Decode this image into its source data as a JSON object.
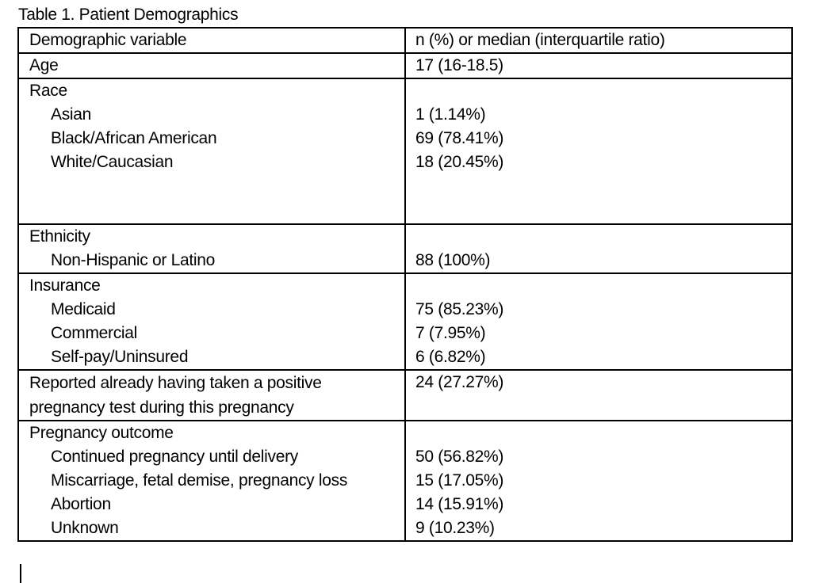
{
  "caption": "Table 1. Patient Demographics",
  "header": {
    "col1": "Demographic variable",
    "col2": "n (%) or median (interquartile ratio)"
  },
  "age": {
    "label": "Age",
    "value": "17 (16-18.5)"
  },
  "race": {
    "label": "Race",
    "items": [
      {
        "label": "Asian",
        "value": "1 (1.14%)"
      },
      {
        "label": "Black/African American",
        "value": "69 (78.41%)"
      },
      {
        "label": "White/Caucasian",
        "value": "18 (20.45%)"
      }
    ]
  },
  "ethnicity": {
    "label": "Ethnicity",
    "items": [
      {
        "label": "Non-Hispanic or Latino",
        "value": "88 (100%)"
      }
    ]
  },
  "insurance": {
    "label": "Insurance",
    "items": [
      {
        "label": "Medicaid",
        "value": "75 (85.23%)"
      },
      {
        "label": "Commercial",
        "value": "7 (7.95%)"
      },
      {
        "label": "Self-pay/Uninsured",
        "value": "6 (6.82%)"
      }
    ]
  },
  "pregnancy_test": {
    "label": "Reported already having taken a positive pregnancy test during this pregnancy",
    "value": "24 (27.27%)"
  },
  "outcome": {
    "label": "Pregnancy outcome",
    "items": [
      {
        "label": "Continued pregnancy until delivery",
        "value": "50 (56.82%)"
      },
      {
        "label": "Miscarriage, fetal demise, pregnancy loss",
        "value": "15 (17.05%)"
      },
      {
        "label": "Abortion",
        "value": "14 (15.91%)"
      },
      {
        "label": "Unknown",
        "value": "9 (10.23%)"
      }
    ]
  }
}
